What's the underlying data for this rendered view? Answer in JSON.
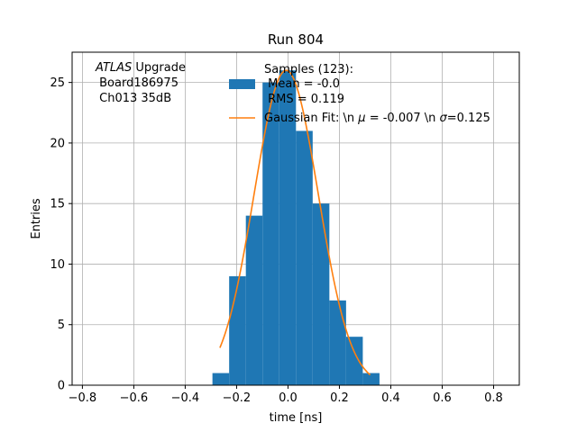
{
  "chart_data": {
    "type": "bar",
    "title": "Run 804",
    "xlabel": "time [ns]",
    "ylabel": "Entries",
    "xlim": [
      -0.84,
      0.9
    ],
    "ylim": [
      0,
      27.5
    ],
    "grid": true,
    "xticks": [
      -0.8,
      -0.6,
      -0.4,
      -0.2,
      0.0,
      0.2,
      0.4,
      0.6,
      0.8
    ],
    "xtick_labels": [
      "−0.8",
      "−0.6",
      "−0.4",
      "−0.2",
      "0.0",
      "0.2",
      "0.4",
      "0.6",
      "0.8"
    ],
    "yticks": [
      0,
      5,
      10,
      15,
      20,
      25
    ],
    "ytick_labels": [
      "0",
      "5",
      "10",
      "15",
      "20",
      "25"
    ],
    "annotation": {
      "italic": "ATLAS",
      "line1_rest": " Upgrade",
      "line2": " Board186975",
      "line3": " Ch013 35dB"
    },
    "legend": {
      "placement": "top-center",
      "hist_label_lines": [
        "Samples (123):",
        " Mean = -0.0",
        " RMS = 0.119"
      ],
      "fit_label_prefix": "Gaussian Fit: \\n ",
      "fit_mu_symbol": "μ",
      "fit_mu_rest": " = -0.007 \\n ",
      "fit_sigma_symbol": "σ",
      "fit_sigma_rest": "=0.125"
    },
    "series": [
      {
        "type": "bar",
        "color": "#1f77b4",
        "bin_edges": [
          -0.294,
          -0.229,
          -0.164,
          -0.099,
          -0.034,
          0.031,
          0.096,
          0.161,
          0.226,
          0.291,
          0.356
        ],
        "values": [
          1,
          9,
          14,
          25,
          26,
          21,
          15,
          7,
          4,
          1
        ]
      },
      {
        "type": "line",
        "color": "#ff7f0e",
        "mu": -0.007,
        "sigma": 0.125,
        "amplitude": 26.0,
        "x_range": [
          -0.265,
          0.32
        ]
      }
    ]
  }
}
